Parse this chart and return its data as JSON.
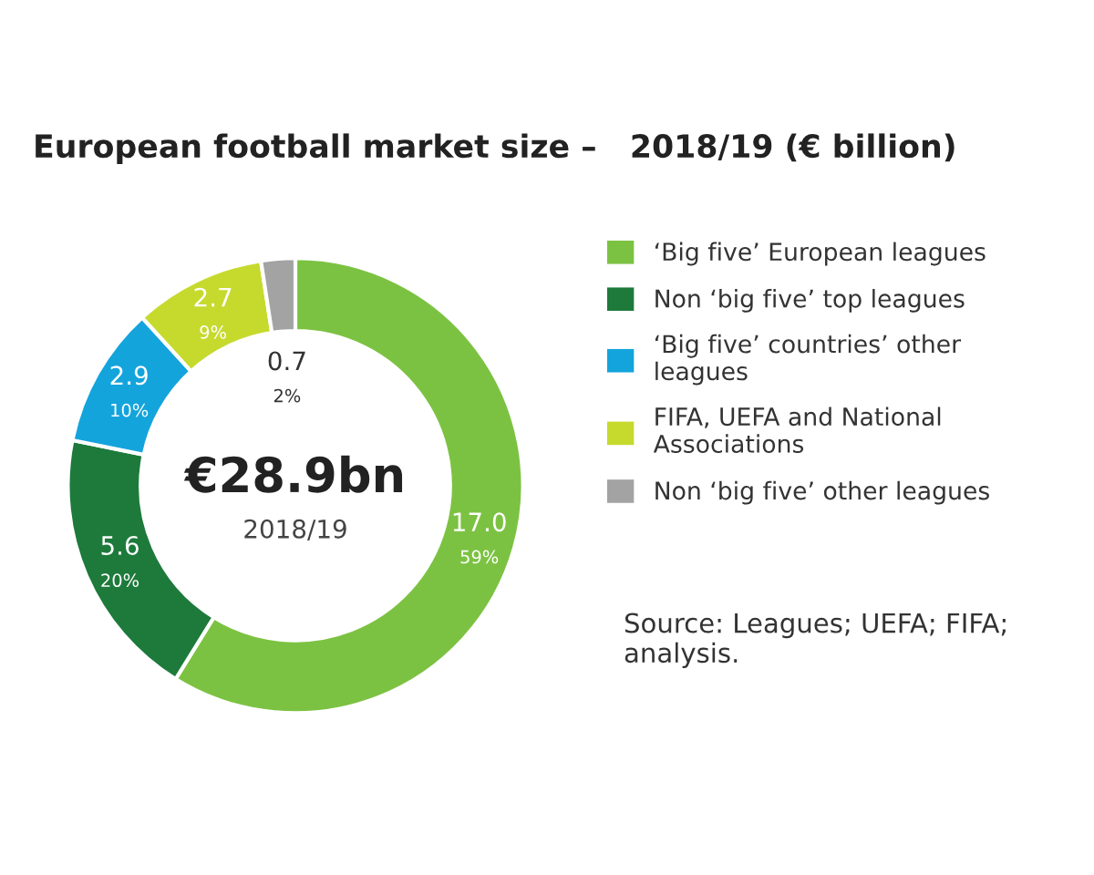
{
  "chart_data": {
    "type": "donut",
    "title": "European football market size –   2018/19 (€ billion)",
    "categories": [
      "‘Big five’ European leagues",
      "Non ‘big five’ top leagues",
      "‘Big five’ countries’ other leagues",
      "FIFA, UEFA and National Associations",
      "Non ‘big five’ other leagues"
    ],
    "values": [
      17.0,
      5.6,
      2.9,
      2.7,
      0.7
    ],
    "colors": [
      "#7cc242",
      "#1d7a3b",
      "#14a4dc",
      "#c6da2e",
      "#a3a3a3"
    ],
    "value_labels": [
      "17.0\n59%",
      "5.6\n20%",
      "2.9\n10%",
      "2.7\n9%",
      "0.7\n2%"
    ],
    "legend": "right",
    "annotations": [
      "€28.9bn",
      "2018/19",
      "Source: Leagues; UEFA; FIFA; analysis."
    ]
  }
}
